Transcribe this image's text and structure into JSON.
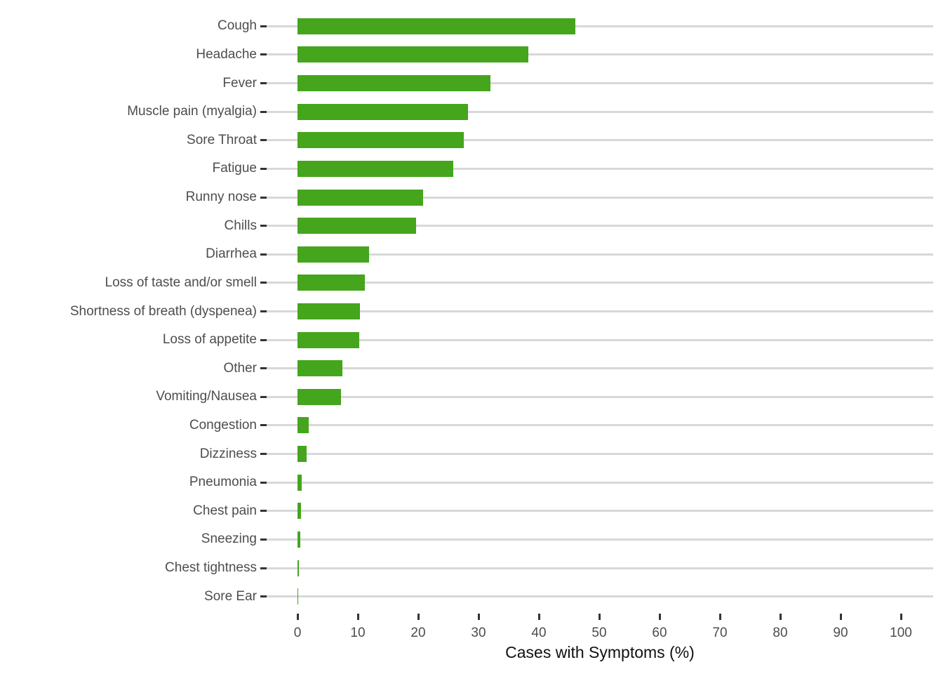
{
  "chart_data": {
    "type": "bar",
    "orientation": "horizontal",
    "title": "",
    "xlabel": "Cases with Symptoms (%)",
    "ylabel": "",
    "xlim": [
      0,
      100
    ],
    "xticks": [
      0,
      10,
      20,
      30,
      40,
      50,
      60,
      70,
      80,
      90,
      100
    ],
    "grid": "horizontal-major-only",
    "legend": "none",
    "categories": [
      "Cough",
      "Headache",
      "Fever",
      "Muscle pain (myalgia)",
      "Sore Throat",
      "Fatigue",
      "Runny nose",
      "Chills",
      "Diarrhea",
      "Loss of taste and/or smell",
      "Shortness of breath (dyspenea)",
      "Loss of appetite",
      "Other",
      "Vomiting/Nausea",
      "Congestion",
      "Dizziness",
      "Pneumonia",
      "Chest pain",
      "Sneezing",
      "Chest tightness",
      "Sore Ear"
    ],
    "values": [
      46.1,
      38.2,
      32.0,
      28.3,
      27.5,
      25.8,
      20.8,
      19.6,
      11.9,
      11.2,
      10.3,
      10.2,
      7.4,
      7.2,
      1.9,
      1.5,
      0.7,
      0.6,
      0.5,
      0.2,
      0.1
    ],
    "colors": {
      "bar": "#45a51d",
      "gridline": "#d8d8d8",
      "axis_text": "#4d4d4d",
      "tick_mark": "#333333",
      "axis_title": "#111111",
      "background": "#ffffff"
    }
  }
}
